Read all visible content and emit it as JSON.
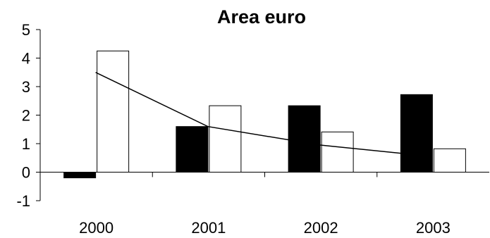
{
  "chart_data": {
    "type": "bar",
    "title": "Area euro",
    "categories": [
      "2000",
      "2001",
      "2002",
      "2003"
    ],
    "series": [
      {
        "kind": "bar",
        "color": "#000000",
        "values": [
          -0.2,
          1.6,
          2.33,
          2.72
        ]
      },
      {
        "kind": "bar",
        "color": "#ffffff",
        "values": [
          4.25,
          2.33,
          1.41,
          0.82
        ]
      },
      {
        "kind": "line",
        "color": "#000000",
        "values": [
          3.5,
          1.6,
          0.95,
          0.55
        ]
      }
    ],
    "ylim": [
      -1,
      5
    ],
    "yticks": [
      -1,
      0,
      1,
      2,
      3,
      4,
      5
    ],
    "grid": false,
    "legend": "none"
  }
}
